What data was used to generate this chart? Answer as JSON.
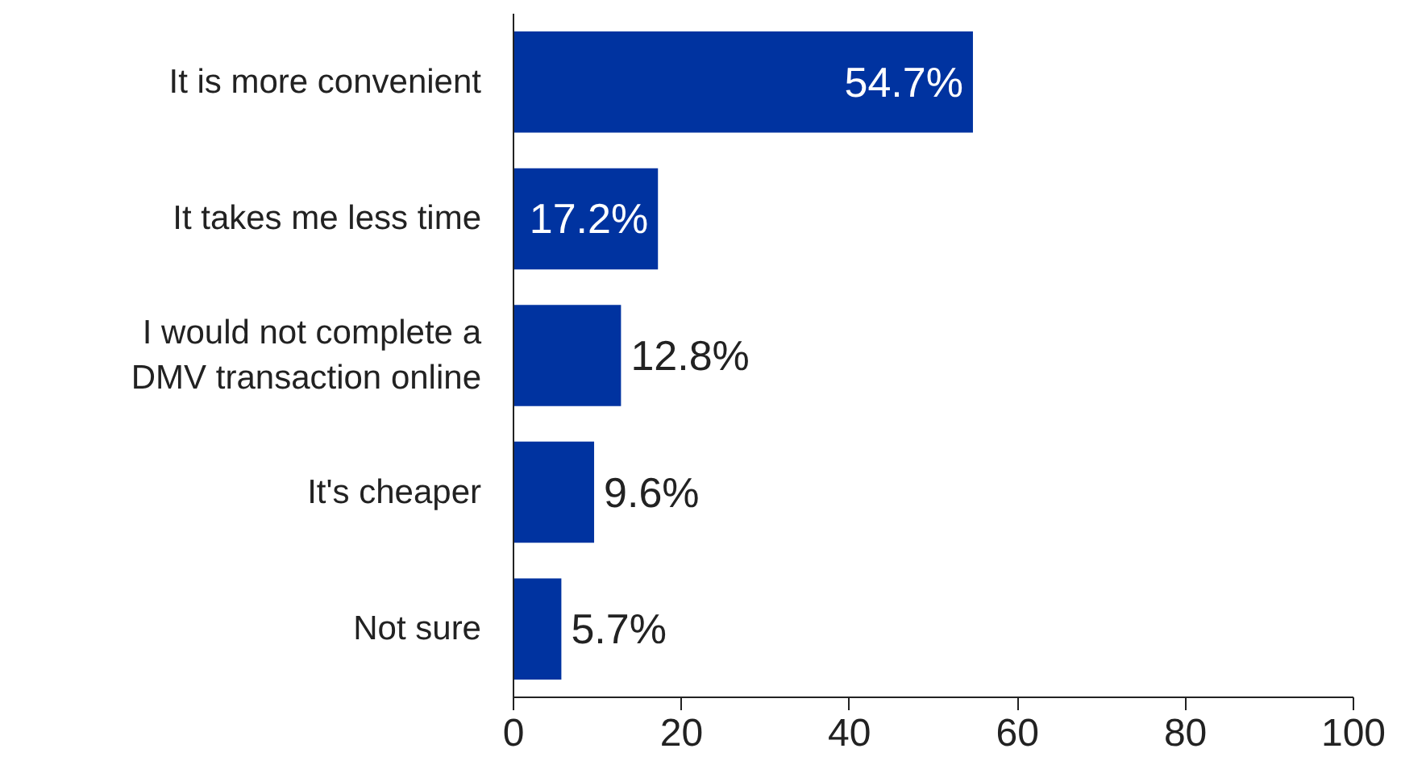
{
  "chart_data": {
    "type": "bar",
    "orientation": "horizontal",
    "categories": [
      "It is more convenient",
      "It takes me less time",
      "I would not complete a DMV transaction online",
      "It's cheaper",
      "Not sure"
    ],
    "values": [
      54.7,
      17.2,
      12.8,
      9.6,
      5.7
    ],
    "value_labels": [
      "54.7%",
      "17.2%",
      "12.8%",
      "9.6%",
      "5.7%"
    ],
    "color": "#0033a0",
    "xlim": [
      0,
      100
    ],
    "xticks": [
      0,
      20,
      40,
      60,
      80,
      100
    ],
    "grid": false
  }
}
